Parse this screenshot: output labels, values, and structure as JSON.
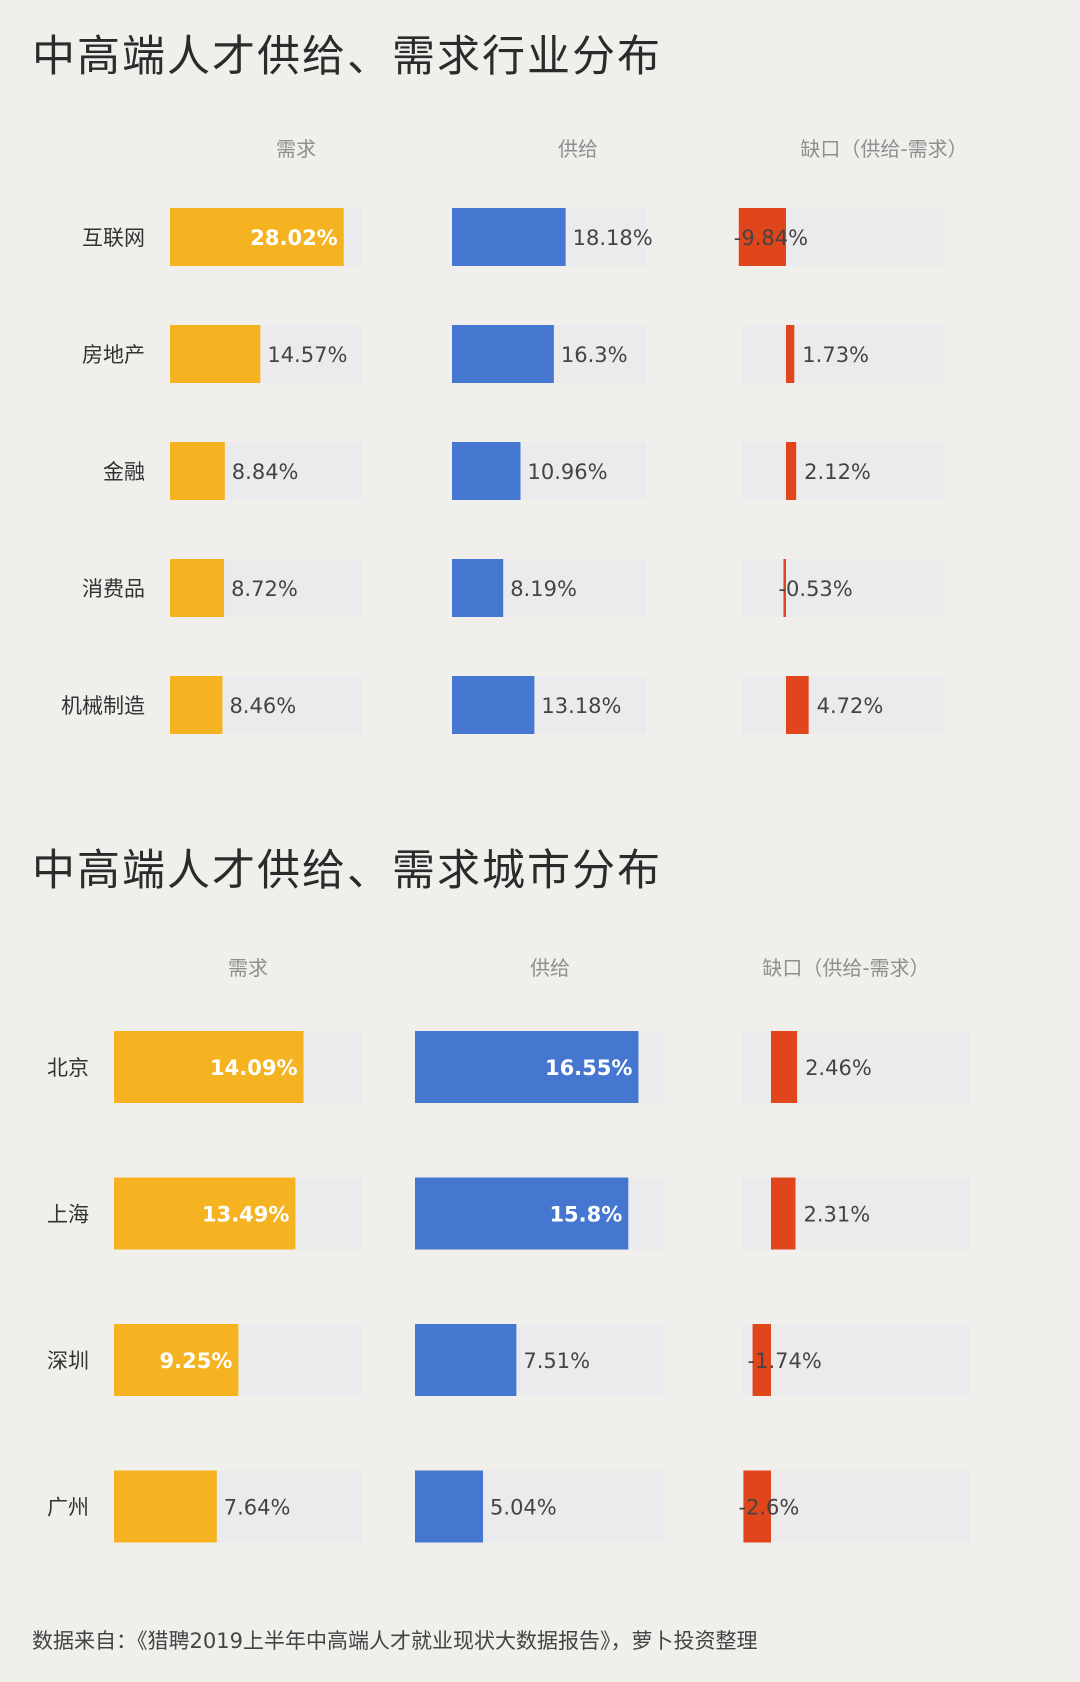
{
  "colors": {
    "demand": "#f5b321",
    "supply": "#4677d0",
    "gap": "#e0451b",
    "track": "#ebebed",
    "header": "#8f8f8f",
    "label": "#333333"
  },
  "chart_data": [
    {
      "type": "bar",
      "title": "中高端人才供给、需求行业分布",
      "categories": [
        "互联网",
        "房地产",
        "金融",
        "消费品",
        "机械制造"
      ],
      "series": [
        {
          "name": "需求",
          "values": [
            28.02,
            14.57,
            8.84,
            8.72,
            8.46
          ],
          "labels": [
            "28.02%",
            "14.57%",
            "8.84%",
            "8.72%",
            "8.46%"
          ],
          "color": "demand"
        },
        {
          "name": "供给",
          "values": [
            18.18,
            16.3,
            10.96,
            8.19,
            13.18
          ],
          "labels": [
            "18.18%",
            "16.3%",
            "10.96%",
            "8.19%",
            "13.18%"
          ],
          "color": "supply"
        },
        {
          "name": "缺口（供给-需求）",
          "values": [
            -9.84,
            1.73,
            2.12,
            -0.53,
            4.72
          ],
          "labels": [
            "-9.84%",
            "1.73%",
            "2.12%",
            "-0.53%",
            "4.72%"
          ],
          "color": "gap"
        }
      ]
    },
    {
      "type": "bar",
      "title": "中高端人才供给、需求城市分布",
      "categories": [
        "北京",
        "上海",
        "深圳",
        "广州"
      ],
      "series": [
        {
          "name": "需求",
          "values": [
            14.09,
            13.49,
            9.25,
            7.64
          ],
          "labels": [
            "14.09%",
            "13.49%",
            "9.25%",
            "7.64%"
          ],
          "color": "demand"
        },
        {
          "name": "供给",
          "values": [
            16.55,
            15.8,
            7.51,
            5.04
          ],
          "labels": [
            "16.55%",
            "15.8%",
            "7.51%",
            "5.04%"
          ],
          "color": "supply"
        },
        {
          "name": "缺口（供给-需求）",
          "values": [
            2.46,
            2.31,
            -1.74,
            -2.6
          ],
          "labels": [
            "2.46%",
            "2.31%",
            "-1.74%",
            "-2.6%"
          ],
          "color": "gap"
        }
      ]
    }
  ],
  "source": "数据来自：《猎聘2019上半年中高端人才就业现状大数据报告》，萝卜投资整理"
}
